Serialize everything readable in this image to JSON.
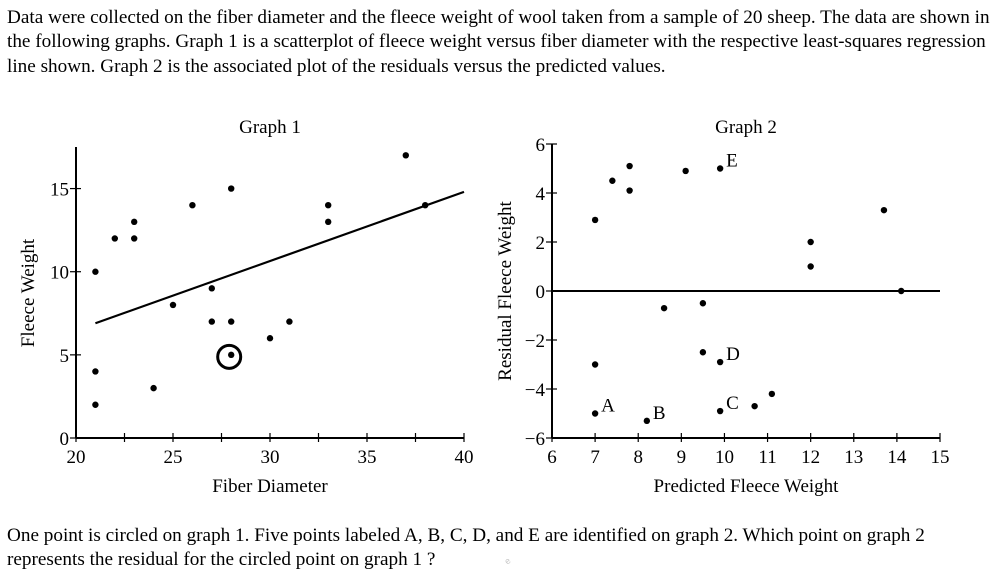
{
  "intro_text": "Data were collected on the fiber diameter and the fleece weight of wool taken from a sample of 20 sheep. The data are shown in the following graphs. Graph 1 is a scatterplot of fleece weight versus fiber diameter with the respective least-squares regression line shown. Graph 2 is the associated plot of the residuals versus the predicted values.",
  "question_text": "One point is circled on graph 1. Five points labeled A, B, C, D, and E are identified on graph 2. Which point on graph 2 represents the residual for the circled point on graph 1 ?",
  "watermark": "e",
  "chart_data": [
    {
      "type": "scatter",
      "title": "Graph 1",
      "xlabel": "Fiber Diameter",
      "ylabel": "Fleece Weight",
      "xlim": [
        20,
        40
      ],
      "ylim": [
        0,
        17.5
      ],
      "x_ticks": [
        20,
        22.5,
        25,
        27.5,
        30,
        32.5,
        35,
        37.5,
        40
      ],
      "x_tick_labels": [
        "20",
        "25",
        "30",
        "35",
        "40"
      ],
      "y_ticks": [
        0,
        5,
        10,
        15
      ],
      "y_tick_labels": [
        "0",
        "5",
        "10",
        "15"
      ],
      "grid": false,
      "points": [
        {
          "x": 21,
          "y": 10
        },
        {
          "x": 21,
          "y": 4
        },
        {
          "x": 21,
          "y": 2
        },
        {
          "x": 22,
          "y": 12
        },
        {
          "x": 23,
          "y": 13
        },
        {
          "x": 23,
          "y": 12
        },
        {
          "x": 24,
          "y": 3
        },
        {
          "x": 25,
          "y": 8
        },
        {
          "x": 26,
          "y": 14
        },
        {
          "x": 27,
          "y": 9
        },
        {
          "x": 27,
          "y": 7
        },
        {
          "x": 28,
          "y": 15
        },
        {
          "x": 28,
          "y": 7
        },
        {
          "x": 28,
          "y": 5,
          "circled": true
        },
        {
          "x": 30,
          "y": 6
        },
        {
          "x": 31,
          "y": 7
        },
        {
          "x": 33,
          "y": 14
        },
        {
          "x": 33,
          "y": 13
        },
        {
          "x": 37,
          "y": 17
        },
        {
          "x": 38,
          "y": 14
        }
      ],
      "regression_line": {
        "x1": 21,
        "y1": 6.9,
        "x2": 40,
        "y2": 14.8
      },
      "annotations": [
        "circled point at (28, 5)"
      ]
    },
    {
      "type": "scatter",
      "title": "Graph 2",
      "xlabel": "Predicted Fleece Weight",
      "ylabel": "Residual Fleece Weight",
      "xlim": [
        6,
        15
      ],
      "ylim": [
        -6,
        6
      ],
      "x_ticks": [
        6,
        7,
        8,
        9,
        10,
        11,
        12,
        13,
        14,
        15
      ],
      "x_tick_labels": [
        "6",
        "7",
        "8",
        "9",
        "10",
        "11",
        "12",
        "13",
        "14",
        "15"
      ],
      "y_ticks": [
        -6,
        -4,
        -2,
        0,
        2,
        4,
        6
      ],
      "y_tick_labels": [
        "−6",
        "−4",
        "−2",
        "0",
        "2",
        "4",
        "6"
      ],
      "grid": false,
      "reference_line_y": 0,
      "points": [
        {
          "x": 7.0,
          "y": 2.9
        },
        {
          "x": 7.4,
          "y": 4.5
        },
        {
          "x": 7.8,
          "y": 5.1
        },
        {
          "x": 7.8,
          "y": 4.1
        },
        {
          "x": 9.1,
          "y": 4.9
        },
        {
          "x": 9.9,
          "y": 5.0,
          "label": "E"
        },
        {
          "x": 12.0,
          "y": 2.0
        },
        {
          "x": 12.0,
          "y": 1.0
        },
        {
          "x": 13.7,
          "y": 3.3
        },
        {
          "x": 14.1,
          "y": 0.0
        },
        {
          "x": 8.6,
          "y": -0.7
        },
        {
          "x": 9.5,
          "y": -0.5
        },
        {
          "x": 9.5,
          "y": -2.5
        },
        {
          "x": 9.9,
          "y": -2.9,
          "label": "D"
        },
        {
          "x": 7.0,
          "y": -3.0
        },
        {
          "x": 7.0,
          "y": -5.0,
          "label": "A"
        },
        {
          "x": 8.2,
          "y": -5.3,
          "label": "B"
        },
        {
          "x": 9.9,
          "y": -4.9,
          "label": "C"
        },
        {
          "x": 10.7,
          "y": -4.7
        },
        {
          "x": 11.1,
          "y": -4.2
        }
      ],
      "annotations": [
        "A",
        "B",
        "C",
        "D",
        "E"
      ]
    }
  ]
}
